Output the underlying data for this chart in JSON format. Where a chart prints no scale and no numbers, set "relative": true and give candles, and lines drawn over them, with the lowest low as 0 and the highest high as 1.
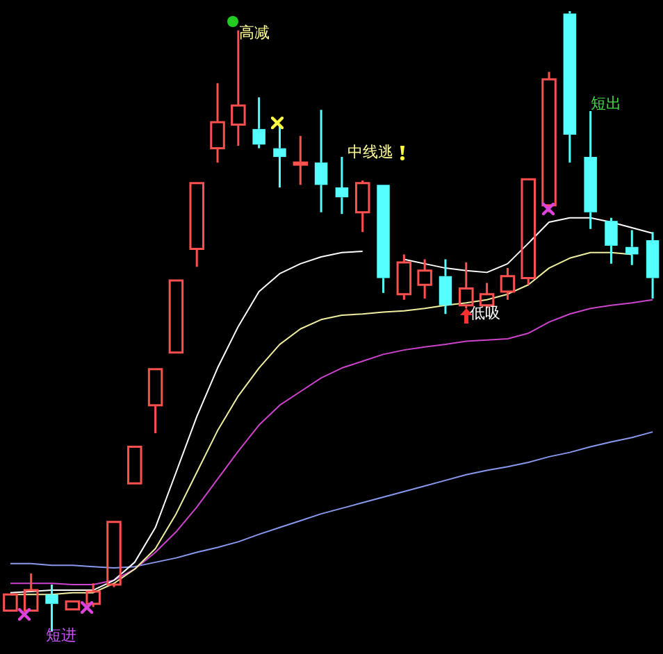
{
  "chart_data": {
    "type": "candlestick",
    "relative": true,
    "legend": false,
    "tick_labels": false,
    "categories": [
      null,
      null,
      null,
      null,
      null,
      null,
      null,
      null,
      null,
      null,
      null,
      null,
      null,
      null,
      null,
      null,
      null,
      null,
      null,
      null,
      null,
      null,
      null,
      null,
      null,
      null,
      null,
      null,
      null,
      null,
      null,
      null
    ],
    "ohlc": [
      [
        0.034,
        0.06,
        0.034,
        0.06
      ],
      [
        0.034,
        0.094,
        0.034,
        0.067
      ],
      [
        0.06,
        0.076,
        0,
        0.045
      ],
      [
        0.036,
        0.049,
        0.036,
        0.049
      ],
      [
        0.045,
        0.078,
        0.04,
        0.065
      ],
      [
        0.076,
        0.177,
        0.072,
        0.177
      ],
      [
        0.239,
        0.298,
        0.239,
        0.298
      ],
      [
        0.365,
        0.423,
        0.32,
        0.423
      ],
      [
        0.45,
        0.566,
        0.45,
        0.566
      ],
      [
        0.617,
        0.723,
        0.588,
        0.723
      ],
      [
        0.779,
        0.884,
        0.756,
        0.821
      ],
      [
        0.817,
        0.969,
        0.783,
        0.848
      ],
      [
        0.81,
        0.861,
        0.779,
        0.785
      ],
      [
        0.779,
        0.817,
        0.716,
        0.765
      ],
      [
        0.754,
        0.799,
        0.72,
        0.756
      ],
      [
        0.756,
        0.841,
        0.676,
        0.72
      ],
      [
        0.716,
        0.765,
        0.673,
        0.7
      ],
      [
        0.676,
        0.727,
        0.644,
        0.723
      ],
      [
        0.72,
        0.72,
        0.546,
        0.57
      ],
      [
        0.544,
        0.608,
        0.535,
        0.595
      ],
      [
        0.559,
        0.6,
        0.537,
        0.582
      ],
      [
        0.573,
        0.6,
        0.512,
        0.526
      ],
      [
        0.526,
        0.595,
        0.521,
        0.553
      ],
      [
        0.526,
        0.562,
        0.521,
        0.544
      ],
      [
        0.548,
        0.586,
        0.535,
        0.573
      ],
      [
        0.57,
        0.729,
        0.559,
        0.729
      ],
      [
        0.687,
        0.902,
        0.676,
        0.89
      ],
      [
        0.996,
        1,
        0.756,
        0.801
      ],
      [
        0.765,
        0.839,
        0.649,
        0.676
      ],
      [
        0.662,
        0.667,
        0.593,
        0.622
      ],
      [
        0.62,
        0.647,
        0.591,
        0.608
      ],
      [
        0.631,
        0.644,
        0.537,
        0.57
      ]
    ],
    "colors": [
      "#ff5050",
      "#ff5050",
      "#55ffff",
      "#ff5050",
      "#ff5050",
      "#ff5050",
      "#ff5050",
      "#ff5050",
      "#ff5050",
      "#ff5050",
      "#ff5050",
      "#ff5050",
      "#55ffff",
      "#55ffff",
      "#ff5050",
      "#55ffff",
      "#55ffff",
      "#ff5050",
      "#55ffff",
      "#ff5050",
      "#ff5050",
      "#55ffff",
      "#ff5050",
      "#ff5050",
      "#ff5050",
      "#ff5050",
      "#ff5050",
      "#55ffff",
      "#55ffff",
      "#55ffff",
      "#55ffff",
      "#55ffff"
    ],
    "series": [
      {
        "type": "line",
        "color": "#ffffff",
        "values": [
          0.063,
          0.065,
          0.067,
          0.067,
          0.067,
          0.083,
          0.112,
          0.168,
          0.257,
          0.347,
          0.425,
          0.492,
          0.548,
          0.577,
          0.593,
          0.604,
          0.611,
          0.613,
          null,
          0.6,
          0.593,
          0.586,
          0.582,
          0.579,
          0.593,
          0.626,
          0.66,
          0.667,
          0.667,
          0.66,
          0.651,
          0.642
        ]
      },
      {
        "type": "line",
        "color": "#f0f0a0",
        "values": [
          0.06,
          0.06,
          0.06,
          0.063,
          0.063,
          0.078,
          0.101,
          0.134,
          0.19,
          0.257,
          0.324,
          0.38,
          0.425,
          0.463,
          0.488,
          0.503,
          0.51,
          0.512,
          0.515,
          0.517,
          0.521,
          0.526,
          0.53,
          0.535,
          0.544,
          0.559,
          0.586,
          0.602,
          0.611,
          0.611,
          0.608,
          null
        ]
      },
      {
        "type": "line",
        "color": "#cc44cc",
        "values": [
          0.078,
          0.078,
          0.078,
          0.076,
          0.076,
          0.083,
          0.101,
          0.128,
          0.161,
          0.201,
          0.246,
          0.291,
          0.333,
          0.365,
          0.387,
          0.409,
          0.425,
          0.436,
          0.447,
          0.454,
          0.459,
          0.463,
          0.468,
          0.47,
          0.472,
          0.481,
          0.499,
          0.512,
          0.521,
          0.526,
          0.53,
          0.535
        ]
      },
      {
        "type": "line",
        "color": "#8899ee",
        "values": [
          0.11,
          0.11,
          0.107,
          0.107,
          0.105,
          0.103,
          0.105,
          0.112,
          0.119,
          0.128,
          0.136,
          0.145,
          0.157,
          0.168,
          0.179,
          0.19,
          0.199,
          0.208,
          0.217,
          0.226,
          0.235,
          0.244,
          0.253,
          0.26,
          0.266,
          0.273,
          0.282,
          0.289,
          0.298,
          0.306,
          0.313,
          0.322
        ]
      }
    ],
    "annotations": [
      "高减",
      "中线逃",
      "低吸",
      "短出",
      "短进"
    ]
  }
}
